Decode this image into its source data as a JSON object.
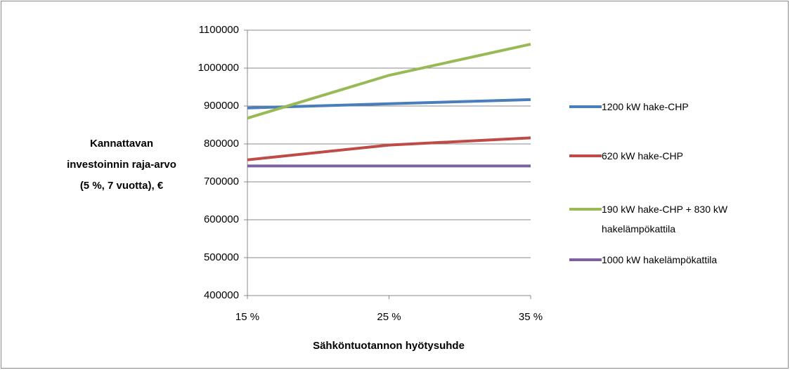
{
  "chart_data": {
    "type": "line",
    "ylabel": [
      "Kannattavan",
      "investoinnin raja-arvo",
      "(5 %, 7 vuotta), €"
    ],
    "xlabel": "Sähköntuotannon hyötysuhde",
    "categories": [
      "15 %",
      "25 %",
      "35 %"
    ],
    "series": [
      {
        "name": "1200 kW hake-CHP",
        "color": "#4a7ebb",
        "values": [
          895000,
          906000,
          917000
        ]
      },
      {
        "name": "620 kW hake-CHP",
        "color": "#be4b48",
        "values": [
          758000,
          797000,
          816000
        ]
      },
      {
        "name": "190 kW hake-CHP + 830 kW hakelämpökattila",
        "color": "#98b954",
        "values": [
          868000,
          981000,
          1063000
        ]
      },
      {
        "name": "1000 kW hakelämpökattila",
        "color": "#7d60a0",
        "values": [
          742000,
          742000,
          742000
        ]
      }
    ],
    "ylim": [
      400000,
      1100000
    ],
    "yticks": [
      400000,
      500000,
      600000,
      700000,
      800000,
      900000,
      1000000,
      1100000
    ],
    "grid": true,
    "legend": "right"
  }
}
